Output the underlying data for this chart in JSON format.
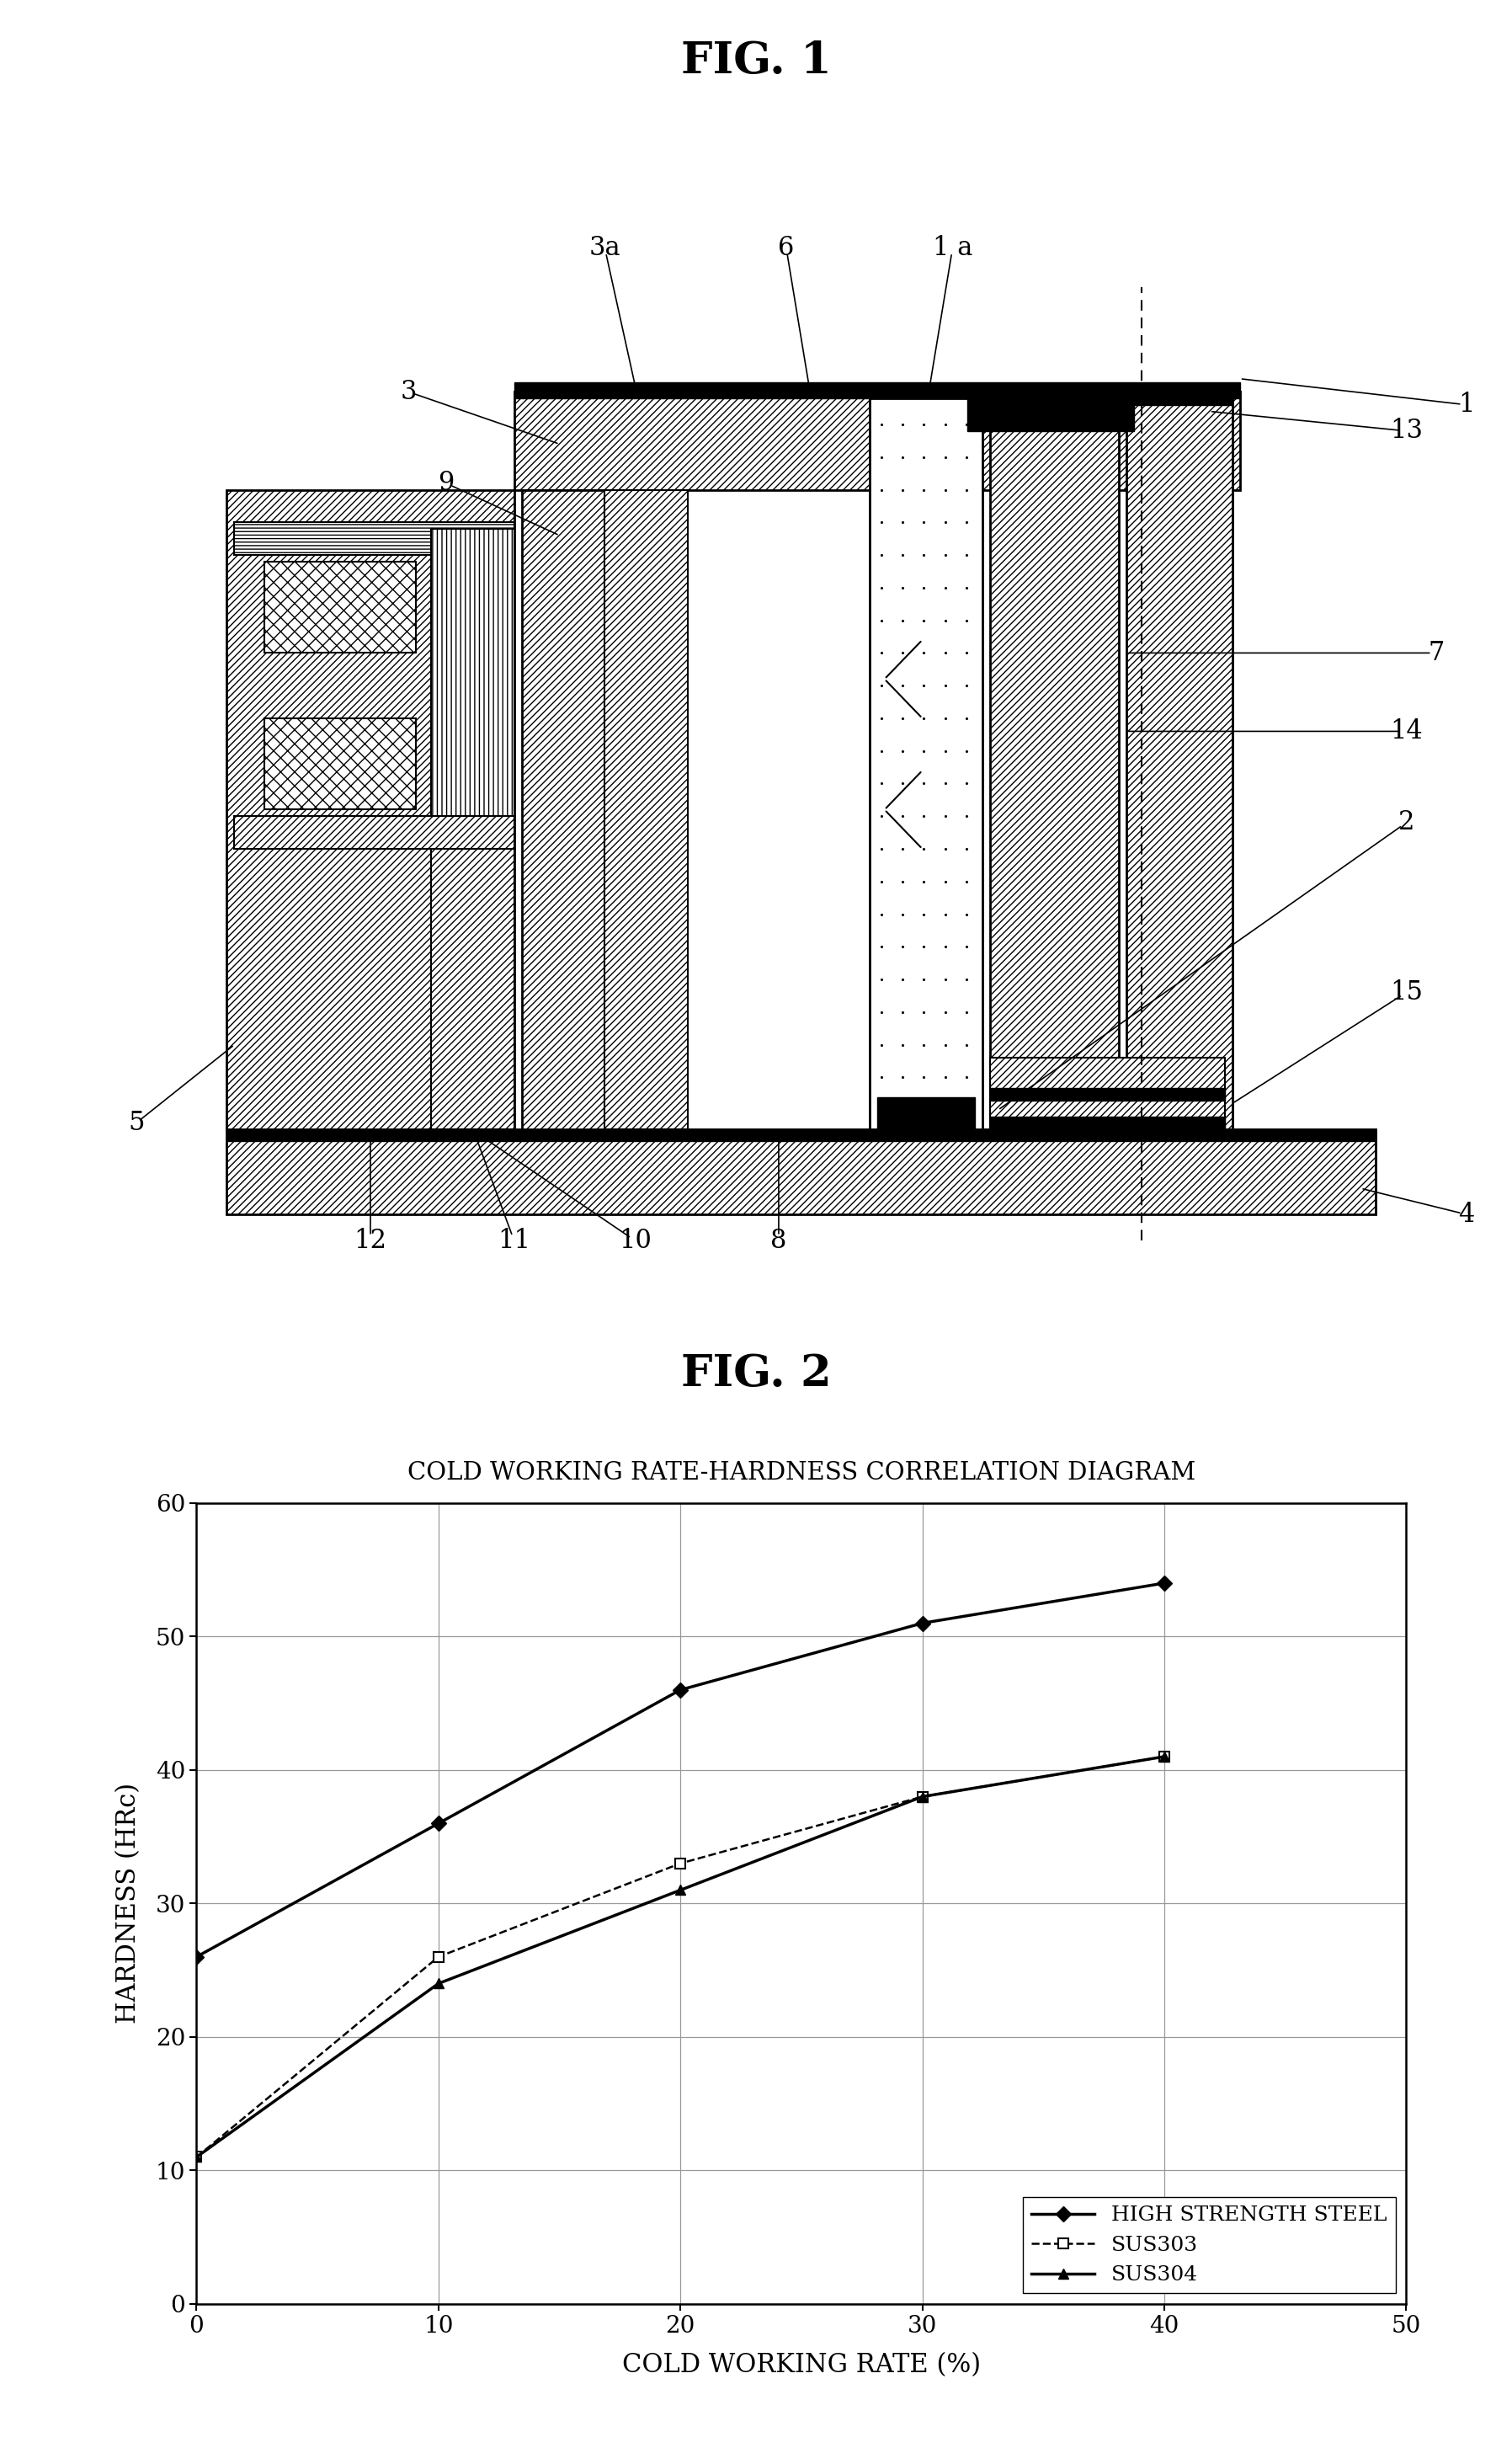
{
  "fig1_title": "FIG. 1",
  "fig2_title": "FIG. 2",
  "graph_title": "COLD WORKING RATE-HARDNESS CORRELATION DIAGRAM",
  "xlabel": "COLD WORKING RATE (%)",
  "ylabel": "HARDNESS (HRc)",
  "xlim": [
    0,
    50
  ],
  "ylim": [
    0,
    60
  ],
  "xticks": [
    0,
    10,
    20,
    30,
    40,
    50
  ],
  "yticks": [
    0,
    10,
    20,
    30,
    40,
    50,
    60
  ],
  "series": {
    "high_strength": {
      "x": [
        0,
        10,
        20,
        30,
        40
      ],
      "y": [
        26,
        36,
        46,
        51,
        54
      ],
      "label": "HIGH STRENGTH STEEL",
      "color": "#000000",
      "linestyle": "-",
      "linewidth": 2.5,
      "marker": "D",
      "markersize": 9,
      "markerfacecolor": "#000000"
    },
    "sus303": {
      "x": [
        0,
        10,
        20,
        30,
        40
      ],
      "y": [
        11,
        26,
        33,
        38,
        41
      ],
      "label": "SUS303",
      "color": "#000000",
      "linestyle": "--",
      "linewidth": 1.8,
      "marker": "s",
      "markersize": 9,
      "markerfacecolor": "#ffffff",
      "markeredgecolor": "#000000",
      "markeredgewidth": 1.5
    },
    "sus304": {
      "x": [
        0,
        10,
        20,
        30,
        40
      ],
      "y": [
        11,
        24,
        31,
        38,
        41
      ],
      "label": "SUS304",
      "color": "#000000",
      "linestyle": "-",
      "linewidth": 2.5,
      "marker": "^",
      "markersize": 9,
      "markerfacecolor": "#000000"
    }
  },
  "background_color": "#ffffff"
}
